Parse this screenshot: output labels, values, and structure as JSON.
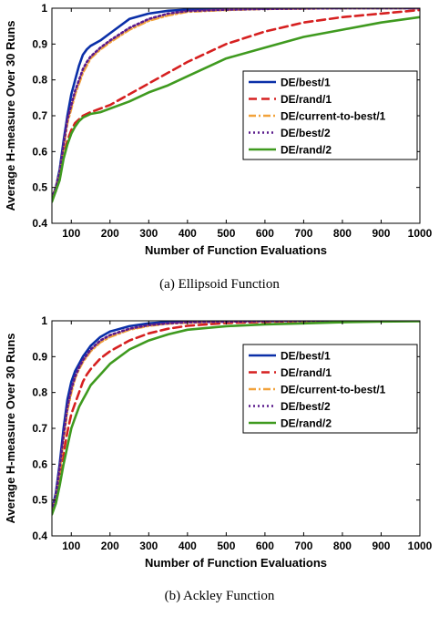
{
  "chart_data": [
    {
      "type": "line",
      "caption": "(a)  Ellipsoid Function",
      "xlabel": "Number of Function Evaluations",
      "ylabel": "Average H-measure Over 30 Runs",
      "xlim": [
        50,
        1000
      ],
      "ylim": [
        0.4,
        1
      ],
      "xticks": [
        100,
        200,
        300,
        400,
        500,
        600,
        700,
        800,
        900,
        1000
      ],
      "yticks": [
        0.4,
        0.5,
        0.6,
        0.7,
        0.8,
        0.9,
        1
      ],
      "grid": false,
      "legend_position": "center-right",
      "x": [
        50,
        60,
        70,
        80,
        90,
        100,
        110,
        120,
        130,
        140,
        150,
        175,
        200,
        250,
        300,
        350,
        400,
        500,
        600,
        700,
        800,
        900,
        1000
      ],
      "series": [
        {
          "name": "DE/best/1",
          "color": "#0a2fa8",
          "style": "solid",
          "values": [
            0.47,
            0.5,
            0.55,
            0.63,
            0.7,
            0.76,
            0.8,
            0.84,
            0.87,
            0.885,
            0.895,
            0.91,
            0.93,
            0.97,
            0.985,
            0.993,
            0.996,
            0.998,
            0.999,
            1.0,
            1.0,
            1.0,
            1.0
          ]
        },
        {
          "name": "DE/rand/1",
          "color": "#d62020",
          "style": "dashed",
          "values": [
            0.47,
            0.49,
            0.53,
            0.59,
            0.63,
            0.66,
            0.68,
            0.69,
            0.7,
            0.705,
            0.71,
            0.72,
            0.73,
            0.76,
            0.79,
            0.82,
            0.85,
            0.9,
            0.935,
            0.96,
            0.975,
            0.985,
            0.995
          ]
        },
        {
          "name": "DE/current-to-best/1",
          "color": "#f2a23a",
          "style": "dashdot",
          "values": [
            0.47,
            0.5,
            0.54,
            0.61,
            0.68,
            0.72,
            0.76,
            0.79,
            0.82,
            0.84,
            0.86,
            0.885,
            0.905,
            0.94,
            0.965,
            0.98,
            0.99,
            0.995,
            0.998,
            0.999,
            1.0,
            1.0,
            1.0
          ]
        },
        {
          "name": "DE/best/2",
          "color": "#5a1a8c",
          "style": "dotted",
          "values": [
            0.47,
            0.5,
            0.54,
            0.62,
            0.69,
            0.73,
            0.77,
            0.8,
            0.83,
            0.85,
            0.865,
            0.89,
            0.91,
            0.945,
            0.97,
            0.985,
            0.992,
            0.996,
            0.998,
            0.999,
            1.0,
            1.0,
            1.0
          ]
        },
        {
          "name": "DE/rand/2",
          "color": "#3f9a1f",
          "style": "solid",
          "values": [
            0.46,
            0.49,
            0.52,
            0.58,
            0.62,
            0.65,
            0.67,
            0.685,
            0.695,
            0.7,
            0.705,
            0.71,
            0.72,
            0.74,
            0.765,
            0.785,
            0.81,
            0.86,
            0.89,
            0.92,
            0.94,
            0.96,
            0.975
          ]
        }
      ]
    },
    {
      "type": "line",
      "caption": "(b)  Ackley Function",
      "xlabel": "Number of Function Evaluations",
      "ylabel": "Average H-measure Over 30 Runs",
      "xlim": [
        50,
        1000
      ],
      "ylim": [
        0.4,
        1
      ],
      "xticks": [
        100,
        200,
        300,
        400,
        500,
        600,
        700,
        800,
        900,
        1000
      ],
      "yticks": [
        0.4,
        0.5,
        0.6,
        0.7,
        0.8,
        0.9,
        1
      ],
      "grid": false,
      "legend_position": "top-right",
      "x": [
        50,
        60,
        70,
        80,
        90,
        100,
        110,
        120,
        130,
        140,
        150,
        175,
        200,
        250,
        300,
        350,
        400,
        500,
        600,
        700,
        800,
        900,
        1000
      ],
      "series": [
        {
          "name": "DE/best/1",
          "color": "#0a2fa8",
          "style": "solid",
          "values": [
            0.47,
            0.52,
            0.6,
            0.7,
            0.78,
            0.83,
            0.86,
            0.88,
            0.9,
            0.915,
            0.93,
            0.955,
            0.97,
            0.985,
            0.993,
            0.997,
            0.998,
            0.999,
            1.0,
            1.0,
            1.0,
            1.0,
            1.0
          ]
        },
        {
          "name": "DE/rand/1",
          "color": "#d62020",
          "style": "dashed",
          "values": [
            0.47,
            0.5,
            0.56,
            0.63,
            0.69,
            0.74,
            0.77,
            0.8,
            0.83,
            0.85,
            0.865,
            0.895,
            0.915,
            0.945,
            0.965,
            0.978,
            0.986,
            0.994,
            0.997,
            0.999,
            1.0,
            1.0,
            1.0
          ]
        },
        {
          "name": "DE/current-to-best/1",
          "color": "#f2a23a",
          "style": "dashdot",
          "values": [
            0.47,
            0.51,
            0.58,
            0.67,
            0.75,
            0.8,
            0.84,
            0.865,
            0.885,
            0.9,
            0.915,
            0.94,
            0.955,
            0.975,
            0.986,
            0.992,
            0.995,
            0.998,
            0.999,
            1.0,
            1.0,
            1.0,
            1.0
          ]
        },
        {
          "name": "DE/best/2",
          "color": "#5a1a8c",
          "style": "dotted",
          "values": [
            0.47,
            0.51,
            0.59,
            0.68,
            0.76,
            0.81,
            0.845,
            0.87,
            0.89,
            0.905,
            0.92,
            0.945,
            0.96,
            0.978,
            0.988,
            0.993,
            0.996,
            0.998,
            0.999,
            1.0,
            1.0,
            1.0,
            1.0
          ]
        },
        {
          "name": "DE/rand/2",
          "color": "#3f9a1f",
          "style": "solid",
          "values": [
            0.46,
            0.49,
            0.54,
            0.6,
            0.65,
            0.7,
            0.73,
            0.76,
            0.78,
            0.8,
            0.82,
            0.85,
            0.88,
            0.92,
            0.945,
            0.962,
            0.975,
            0.985,
            0.99,
            0.993,
            0.996,
            0.998,
            0.999
          ]
        }
      ]
    }
  ]
}
